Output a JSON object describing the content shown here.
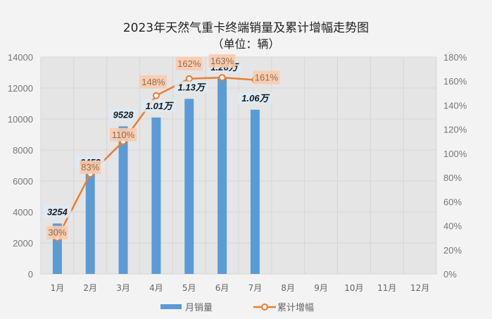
{
  "header": {
    "title": "2023年天然气重卡终端销量及累计增幅走势图",
    "subtitle": "（单位：辆）"
  },
  "legend": {
    "bar_label": "月销量",
    "line_label": "累计增幅"
  },
  "colors": {
    "bar": "#5b9bd5",
    "line": "#ed7d31",
    "pct_label_bg": "#f8cbad",
    "value_label_bg": "#ddebf7",
    "plot_bg": "#e5e5e5",
    "grid": "#d6d6d6"
  },
  "chart_data": {
    "type": "bar",
    "title": "2023年天然气重卡终端销量及累计增幅走势图",
    "subtitle": "（单位：辆）",
    "categories": [
      "1月",
      "2月",
      "3月",
      "4月",
      "5月",
      "6月",
      "7月",
      "8月",
      "9月",
      "10月",
      "11月",
      "12月"
    ],
    "series": [
      {
        "name": "月销量",
        "type": "bar",
        "axis": "left",
        "values": [
          3254,
          6458,
          9528,
          10100,
          11300,
          12600,
          10600,
          null,
          null,
          null,
          null,
          null
        ],
        "labels": [
          "3254",
          "6458",
          "9528",
          "1.01万",
          "1.13万",
          "1.26万",
          "1.06万"
        ]
      },
      {
        "name": "累计增幅",
        "type": "line",
        "axis": "right",
        "unit": "%",
        "values": [
          30,
          83,
          110,
          148,
          162,
          163,
          161,
          null,
          null,
          null,
          null,
          null
        ],
        "labels": [
          "30%",
          "83%",
          "110%",
          "148%",
          "162%",
          "163%",
          "161%"
        ]
      }
    ],
    "xlabel": "",
    "ylabel_left": "",
    "ylabel_right": "",
    "ylim_left": [
      0,
      14000
    ],
    "yticks_left": [
      "0",
      "2000",
      "4000",
      "6000",
      "8000",
      "10000",
      "12000",
      "14000"
    ],
    "ylim_right": [
      0,
      180
    ],
    "yticks_right": [
      "0%",
      "20%",
      "40%",
      "60%",
      "80%",
      "100%",
      "120%",
      "140%",
      "160%",
      "180%"
    ],
    "grid": true,
    "legend_position": "bottom"
  }
}
